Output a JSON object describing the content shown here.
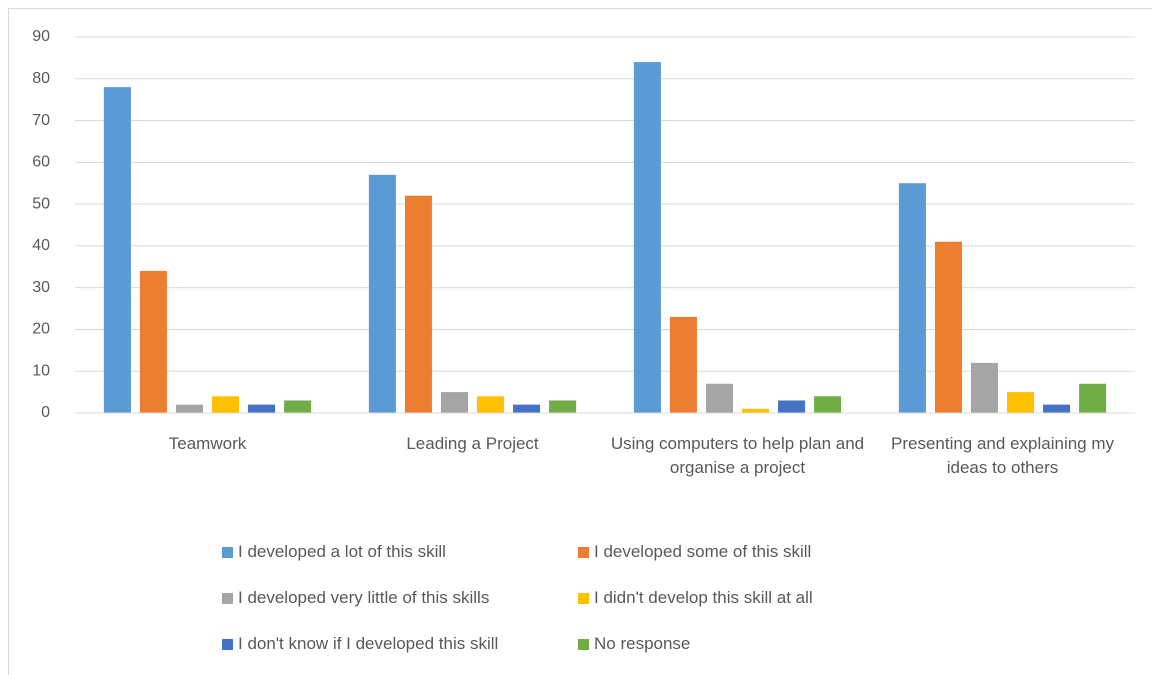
{
  "chart_data": {
    "type": "bar",
    "categories": [
      "Teamwork",
      "Leading a Project",
      "Using computers to help plan and organise a project",
      "Presenting and explaining my ideas to others"
    ],
    "series": [
      {
        "name": "I developed a lot of this skill",
        "color": "#5b9bd5",
        "values": [
          78,
          57,
          84,
          55
        ]
      },
      {
        "name": "I developed some of this skill",
        "color": "#ed7d31",
        "values": [
          34,
          52,
          23,
          41
        ]
      },
      {
        "name": "I developed very little of this skills",
        "color": "#a5a5a5",
        "values": [
          2,
          5,
          7,
          12
        ]
      },
      {
        "name": "I didn't develop this skill at all",
        "color": "#ffc000",
        "values": [
          4,
          4,
          1,
          5
        ]
      },
      {
        "name": "I don't know if I developed this skill",
        "color": "#4472c4",
        "values": [
          2,
          2,
          3,
          2
        ]
      },
      {
        "name": "No response",
        "color": "#70ad47",
        "values": [
          3,
          3,
          4,
          7
        ]
      }
    ],
    "ylim": [
      0,
      90
    ],
    "yticks": [
      0,
      10,
      20,
      30,
      40,
      50,
      60,
      70,
      80,
      90
    ],
    "grid": true,
    "legend": "bottom"
  }
}
